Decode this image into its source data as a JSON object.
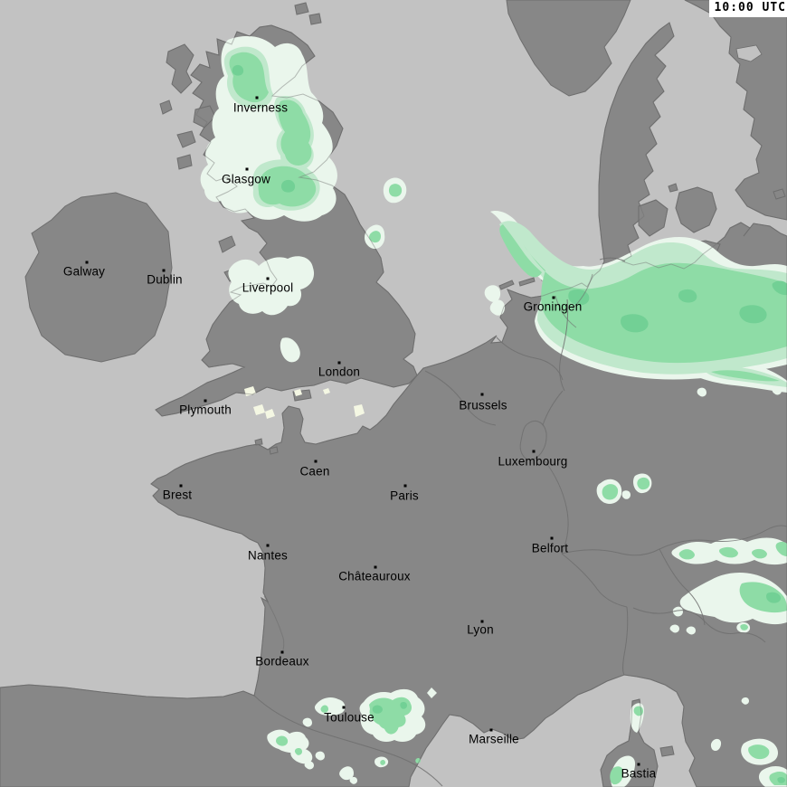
{
  "header": {
    "time": "10:00 UTC"
  },
  "map": {
    "region": "Western Europe precipitation map",
    "colors": {
      "sea": "#c2c2c2",
      "land": "#878787",
      "coastline": "#6e6e6e",
      "border": "#6e6e6e",
      "precip_trace": "#eaf6ec",
      "precip_mixed_trace": "#f4f7e3",
      "precip_light": "#c0e8cc",
      "precip_moderate": "#8edca6",
      "precip_heavy": "#72d095",
      "city_text": "#000000",
      "city_dot": "#000000",
      "timestamp_bg": "#ffffff",
      "timestamp_text": "#000000"
    },
    "cities": [
      {
        "name": "Inverness",
        "dot": [
          284,
          108
        ],
        "label": [
          288,
          119
        ]
      },
      {
        "name": "Glasgow",
        "dot": [
          273,
          187
        ],
        "label": [
          272,
          198
        ]
      },
      {
        "name": "Galway",
        "dot": [
          96,
          290
        ],
        "label": [
          93,
          300
        ]
      },
      {
        "name": "Dublin",
        "dot": [
          181,
          299
        ],
        "label": [
          182,
          309
        ]
      },
      {
        "name": "Liverpool",
        "dot": [
          296,
          308
        ],
        "label": [
          296,
          318
        ]
      },
      {
        "name": "Groningen",
        "dot": [
          612,
          329
        ],
        "label": [
          611,
          339
        ]
      },
      {
        "name": "London",
        "dot": [
          375,
          401
        ],
        "label": [
          375,
          411
        ]
      },
      {
        "name": "Brussels",
        "dot": [
          533,
          436
        ],
        "label": [
          534,
          448
        ]
      },
      {
        "name": "Plymouth",
        "dot": [
          227,
          443
        ],
        "label": [
          227,
          453
        ]
      },
      {
        "name": "Luxembourg",
        "dot": [
          590,
          499
        ],
        "label": [
          589,
          510
        ]
      },
      {
        "name": "Caen",
        "dot": [
          349,
          510
        ],
        "label": [
          348,
          521
        ]
      },
      {
        "name": "Brest",
        "dot": [
          200,
          537
        ],
        "label": [
          196,
          547
        ]
      },
      {
        "name": "Paris",
        "dot": [
          448,
          537
        ],
        "label": [
          447,
          548
        ]
      },
      {
        "name": "Nantes",
        "dot": [
          296,
          603
        ],
        "label": [
          296,
          614
        ]
      },
      {
        "name": "Belfort",
        "dot": [
          610,
          595
        ],
        "label": [
          608,
          606
        ]
      },
      {
        "name": "Châteauroux",
        "dot": [
          415,
          627
        ],
        "label": [
          414,
          637
        ]
      },
      {
        "name": "Lyon",
        "dot": [
          533,
          687
        ],
        "label": [
          531,
          696
        ]
      },
      {
        "name": "Bordeaux",
        "dot": [
          312,
          721
        ],
        "label": [
          312,
          731
        ]
      },
      {
        "name": "Toulouse",
        "dot": [
          380,
          782
        ],
        "label": [
          386,
          793
        ]
      },
      {
        "name": "Marseille",
        "dot": [
          543,
          807
        ],
        "label": [
          546,
          817
        ]
      },
      {
        "name": "Bastia",
        "dot": [
          706,
          845
        ],
        "label": [
          706,
          855
        ]
      }
    ]
  }
}
